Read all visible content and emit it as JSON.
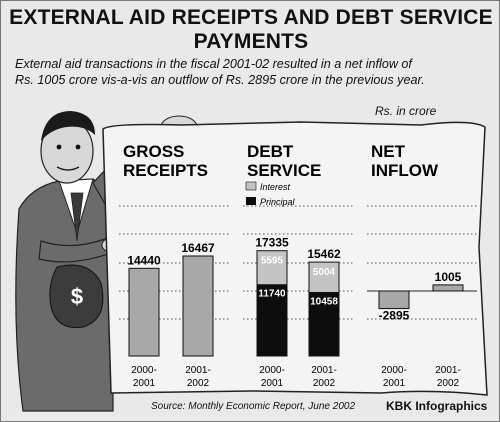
{
  "title_line1": "EXTERNAL AID RECEIPTS AND DEBT SERVICE",
  "title_line2": "PAYMENTS",
  "subtitle_line1": "External aid transactions in the fiscal 2001-02 resulted in a net inflow of",
  "subtitle_line2": "Rs. 1005 crore vis-a-vis an outflow of Rs. 2895 crore in the previous year.",
  "unit": "Rs. in crore",
  "source": "Source: Monthly Economic Report, June 2002",
  "credit": "KBK Infographics",
  "colors": {
    "gross_bar": "#a8a8a8",
    "interest": "#c4c4c4",
    "principal": "#0d0d0d",
    "net_bar": "#a8a8a8",
    "paper": "#f4f4f4",
    "background": "#e9e9e9"
  },
  "chart_data": [
    {
      "type": "bar",
      "title_lines": [
        "GROSS",
        "RECEIPTS"
      ],
      "categories": [
        "2000-2001",
        "2001-2002"
      ],
      "category_lines": [
        [
          "2000-",
          "2001"
        ],
        [
          "2001-",
          "2002"
        ]
      ],
      "values": [
        14440,
        16467
      ],
      "labels": [
        "14440",
        "16467"
      ]
    },
    {
      "type": "bar",
      "stacked": true,
      "title_lines": [
        "DEBT",
        "SERVICE"
      ],
      "categories": [
        "2000-2001",
        "2001-2002"
      ],
      "category_lines": [
        [
          "2000-",
          "2001"
        ],
        [
          "2001-",
          "2002"
        ]
      ],
      "totals": [
        17335,
        15462
      ],
      "total_labels": [
        "17335",
        "15462"
      ],
      "legend": [
        "Interest",
        "Principal"
      ],
      "series": [
        {
          "name": "Principal",
          "values": [
            11740,
            10458
          ],
          "labels": [
            "11740",
            "10458"
          ]
        },
        {
          "name": "Interest",
          "values": [
            5595,
            5004
          ],
          "labels": [
            "5595",
            "5004"
          ]
        }
      ]
    },
    {
      "type": "bar",
      "title_lines": [
        "NET",
        "INFLOW"
      ],
      "categories": [
        "2000-2001",
        "2001-2002"
      ],
      "category_lines": [
        [
          "2000-",
          "2001"
        ],
        [
          "2001-",
          "2002"
        ]
      ],
      "values": [
        -2895,
        1005
      ],
      "labels": [
        "-2895",
        "1005"
      ]
    }
  ]
}
